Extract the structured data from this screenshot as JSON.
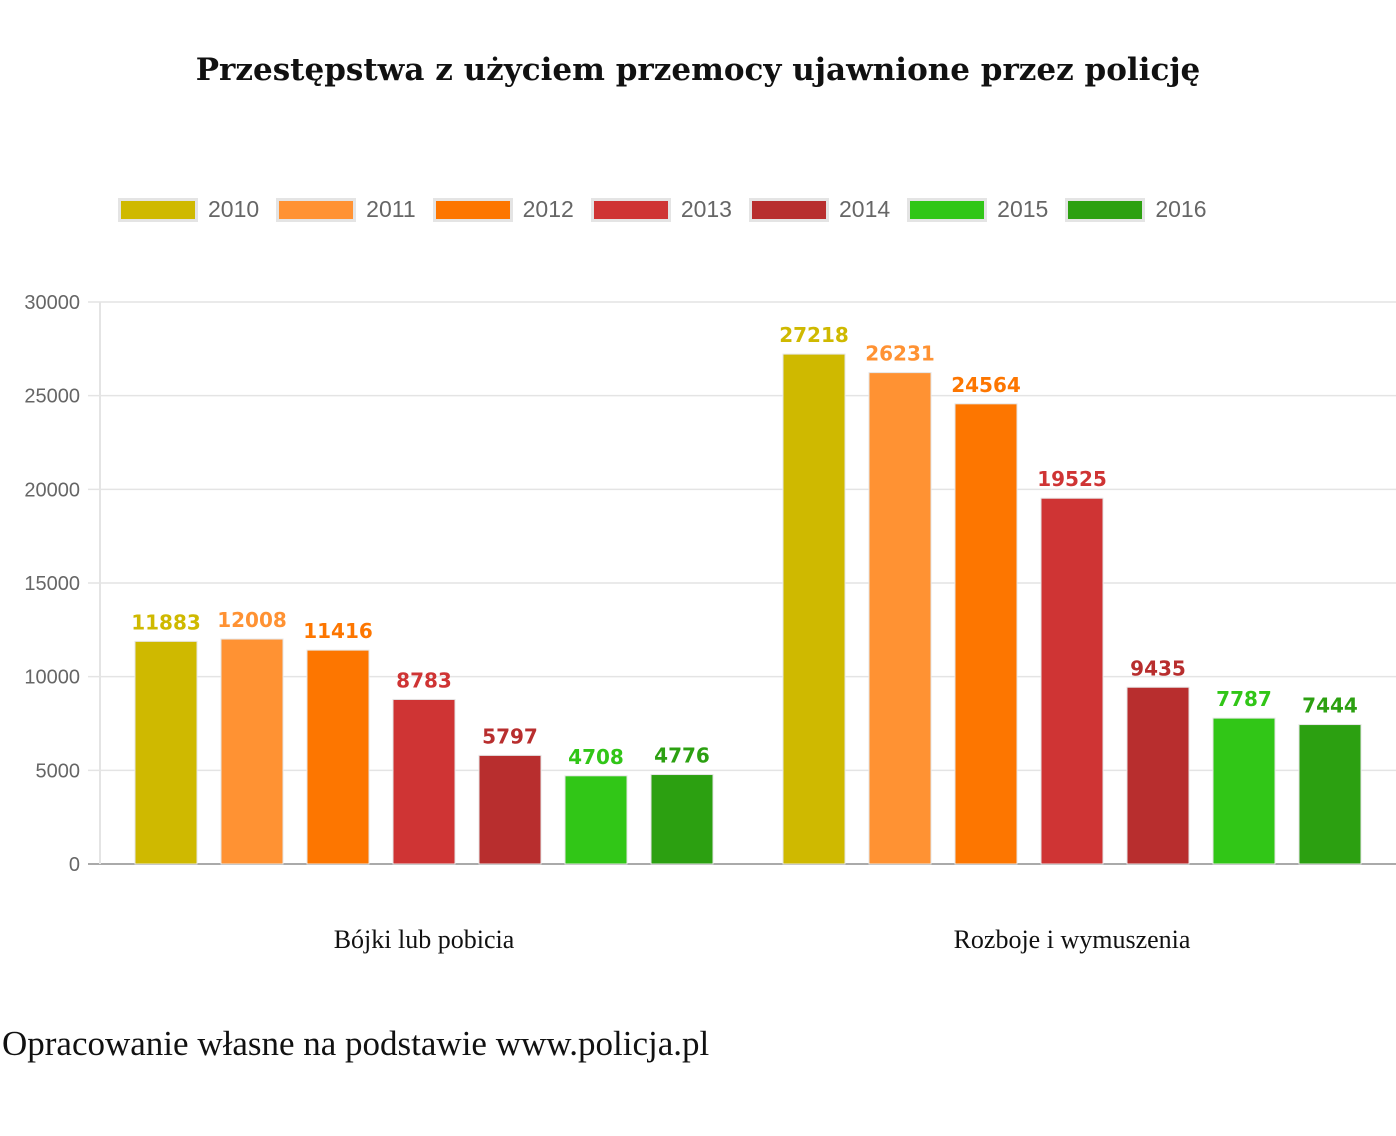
{
  "chart_data": {
    "type": "bar",
    "title": "Przestępstwa z użyciem przemocy ujawnione przez policję",
    "categories": [
      "Bójki lub pobicia",
      "Rozboje i wymuszenia"
    ],
    "series": [
      {
        "name": "2010",
        "color": "#cfb900",
        "values": [
          11883,
          27218
        ]
      },
      {
        "name": "2011",
        "color": "#ff9233",
        "values": [
          12008,
          26231
        ]
      },
      {
        "name": "2012",
        "color": "#fd7600",
        "values": [
          11416,
          24564
        ]
      },
      {
        "name": "2013",
        "color": "#cf3434",
        "values": [
          8783,
          19525
        ]
      },
      {
        "name": "2014",
        "color": "#b82e2e",
        "values": [
          5797,
          9435
        ]
      },
      {
        "name": "2015",
        "color": "#31c617",
        "values": [
          4708,
          7787
        ]
      },
      {
        "name": "2016",
        "color": "#2ca011",
        "values": [
          4776,
          7444
        ]
      }
    ],
    "yticks": [
      "0",
      "5000",
      "10000",
      "15000",
      "20000",
      "25000",
      "30000"
    ],
    "ylim": [
      0,
      30000
    ],
    "xlabel": "",
    "ylabel": "",
    "grid": true,
    "legend": "top"
  },
  "source": "Opracowanie własne na podstawie www.policja.pl"
}
